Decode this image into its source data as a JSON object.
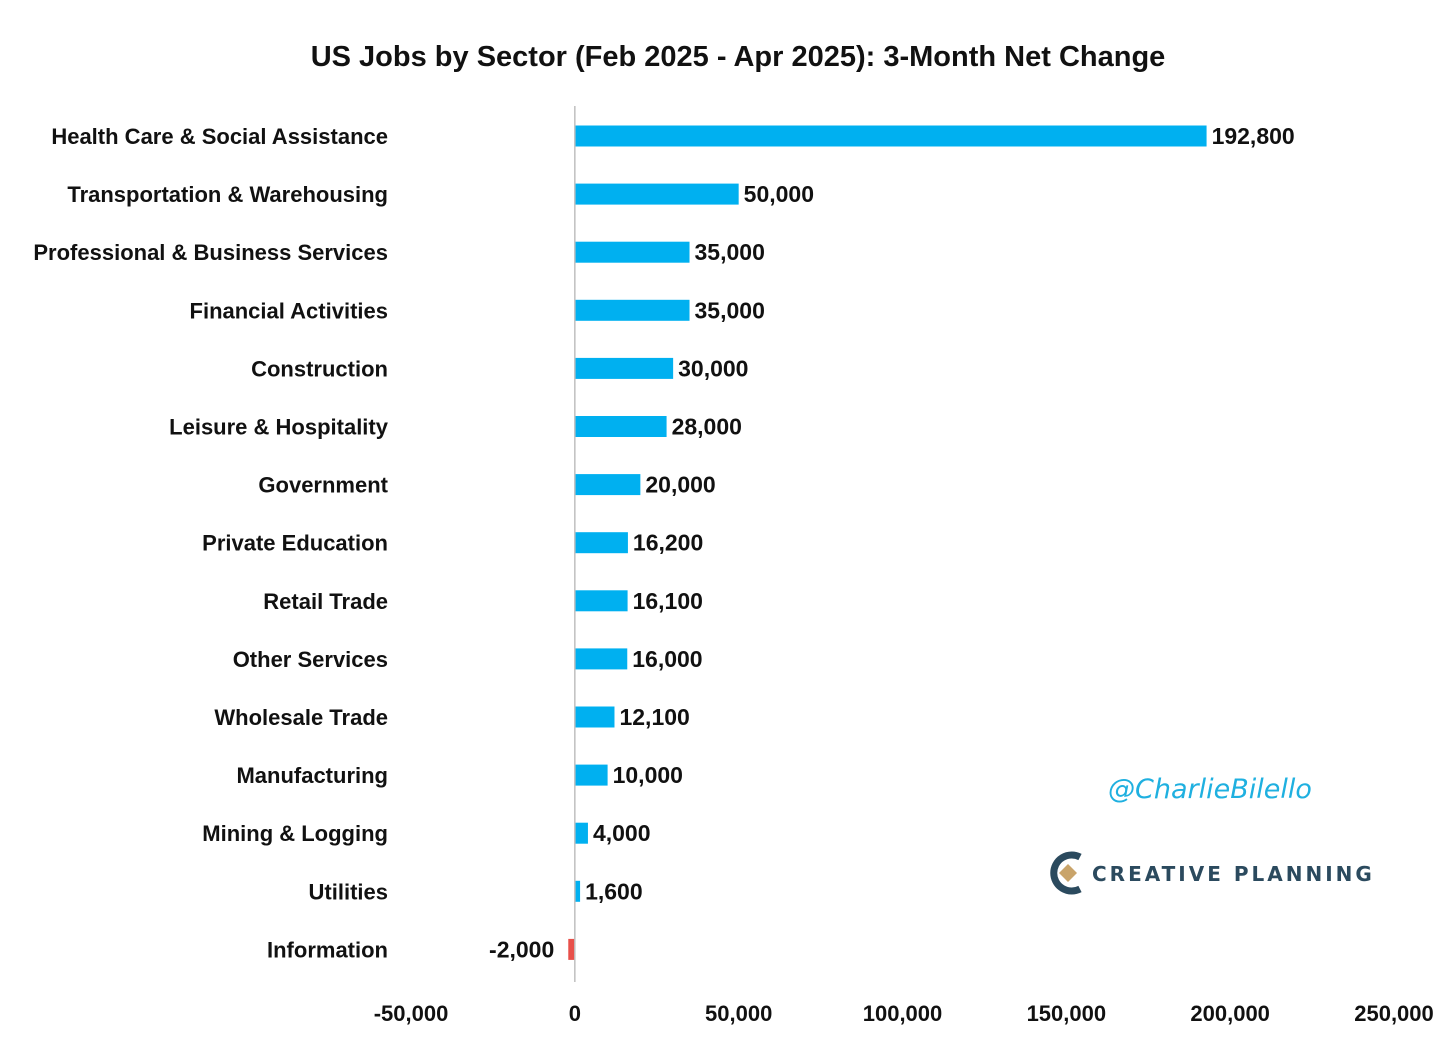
{
  "chart_data": {
    "type": "bar",
    "orientation": "horizontal",
    "title": "US Jobs by Sector (Feb 2025 - Apr 2025): 3-Month Net Change",
    "xlabel": "",
    "ylabel": "",
    "xlim": [
      -50000,
      250000
    ],
    "x_ticks": [
      -50000,
      0,
      50000,
      100000,
      150000,
      200000,
      250000
    ],
    "x_tick_labels": [
      "-50,000",
      "0",
      "50,000",
      "100,000",
      "150,000",
      "200,000",
      "250,000"
    ],
    "grid": false,
    "categories": [
      "Health Care & Social Assistance",
      "Transportation & Warehousing",
      "Professional & Business Services",
      "Financial Activities",
      "Construction",
      "Leisure & Hospitality",
      "Government",
      "Private Education",
      "Retail Trade",
      "Other Services",
      "Wholesale Trade",
      "Manufacturing",
      "Mining & Logging",
      "Utilities",
      "Information"
    ],
    "values": [
      192800,
      50000,
      35000,
      35000,
      30000,
      28000,
      20000,
      16200,
      16100,
      16000,
      12100,
      10000,
      4000,
      1600,
      -2000
    ],
    "value_labels": [
      "192,800",
      "50,000",
      "35,000",
      "35,000",
      "30,000",
      "28,000",
      "20,000",
      "16,200",
      "16,100",
      "16,000",
      "12,100",
      "10,000",
      "4,000",
      "1,600",
      "-2,000"
    ],
    "colors": {
      "positive": "#00b0f0",
      "negative": "#e8504a",
      "axis": "#bfbfbf"
    }
  },
  "watermark": {
    "handle": "@CharlieBilello",
    "brand": "CREATIVE PLANNING"
  }
}
